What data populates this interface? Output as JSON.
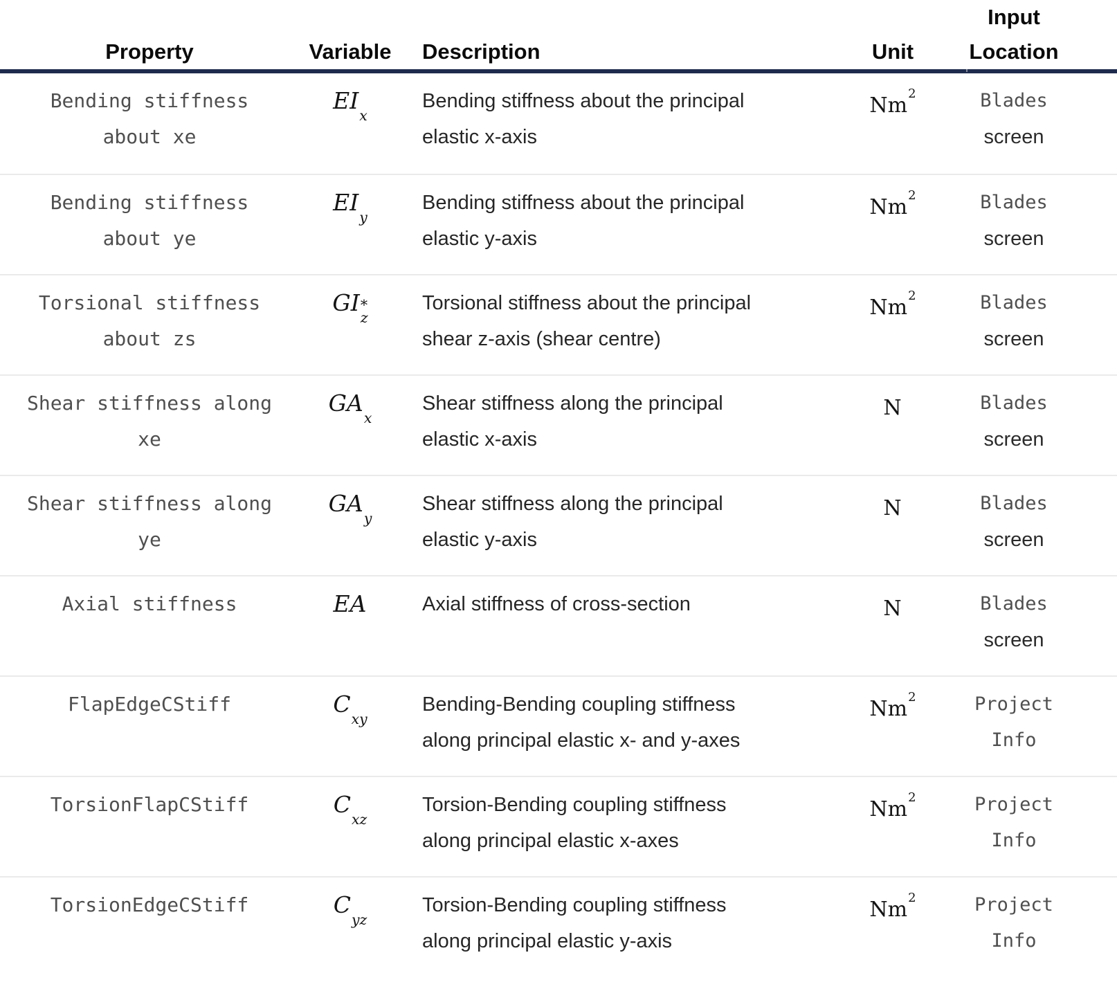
{
  "colors": {
    "header_rule": "#1f2b4d",
    "row_divider": "#eaeaea",
    "code_text": "#4f4f4f",
    "body_text": "#262626"
  },
  "table": {
    "columns": [
      {
        "id": "property",
        "lines": [
          "Property"
        ]
      },
      {
        "id": "variable",
        "lines": [
          "Variable"
        ]
      },
      {
        "id": "description",
        "lines": [
          "Description"
        ]
      },
      {
        "id": "unit",
        "lines": [
          "Unit"
        ]
      },
      {
        "id": "input_location",
        "lines": [
          "Input",
          "Location"
        ]
      }
    ],
    "rows": [
      {
        "property_lines": [
          "Bending stiffness",
          "about xe"
        ],
        "variable": {
          "base": "EI",
          "sup": "",
          "sub": "x"
        },
        "description_lines": [
          "Bending stiffness about the principal",
          "elastic x-axis"
        ],
        "unit": {
          "base": "Nm",
          "sup": "2"
        },
        "location": {
          "line1": "Blades",
          "line1_code": true,
          "line2": "screen",
          "line2_code": false
        }
      },
      {
        "property_lines": [
          "Bending stiffness",
          "about ye"
        ],
        "variable": {
          "base": "EI",
          "sup": "",
          "sub": "y"
        },
        "description_lines": [
          "Bending stiffness about the principal",
          "elastic y-axis"
        ],
        "unit": {
          "base": "Nm",
          "sup": "2"
        },
        "location": {
          "line1": "Blades",
          "line1_code": true,
          "line2": "screen",
          "line2_code": false
        }
      },
      {
        "property_lines": [
          "Torsional stiffness",
          "about zs"
        ],
        "variable": {
          "base": "GI",
          "sup": "*",
          "sub": "z"
        },
        "description_lines": [
          "Torsional stiffness about the principal",
          "shear z-axis (shear centre)"
        ],
        "unit": {
          "base": "Nm",
          "sup": "2"
        },
        "location": {
          "line1": "Blades",
          "line1_code": true,
          "line2": "screen",
          "line2_code": false
        }
      },
      {
        "property_lines": [
          "Shear stiffness along",
          "xe"
        ],
        "variable": {
          "base": "GA",
          "sup": "",
          "sub": "x"
        },
        "description_lines": [
          "Shear stiffness along the principal",
          "elastic x-axis"
        ],
        "unit": {
          "base": "N",
          "sup": ""
        },
        "location": {
          "line1": "Blades",
          "line1_code": true,
          "line2": "screen",
          "line2_code": false
        }
      },
      {
        "property_lines": [
          "Shear stiffness along",
          "ye"
        ],
        "variable": {
          "base": "GA",
          "sup": "",
          "sub": "y"
        },
        "description_lines": [
          "Shear stiffness along the principal",
          "elastic y-axis"
        ],
        "unit": {
          "base": "N",
          "sup": ""
        },
        "location": {
          "line1": "Blades",
          "line1_code": true,
          "line2": "screen",
          "line2_code": false
        }
      },
      {
        "property_lines": [
          "Axial stiffness"
        ],
        "variable": {
          "base": "EA",
          "sup": "",
          "sub": ""
        },
        "description_lines": [
          "Axial stiffness of cross-section"
        ],
        "unit": {
          "base": "N",
          "sup": ""
        },
        "location": {
          "line1": "Blades",
          "line1_code": true,
          "line2": "screen",
          "line2_code": false
        }
      },
      {
        "property_lines": [
          "FlapEdgeCStiff"
        ],
        "variable": {
          "base": "C",
          "sup": "",
          "sub": "xy"
        },
        "description_lines": [
          "Bending-Bending coupling stiffness",
          "along principal elastic x- and y-axes"
        ],
        "unit": {
          "base": "Nm",
          "sup": "2"
        },
        "location": {
          "line1": "Project",
          "line1_code": true,
          "line2": "Info",
          "line2_code": true
        }
      },
      {
        "property_lines": [
          "TorsionFlapCStiff"
        ],
        "variable": {
          "base": "C",
          "sup": "",
          "sub": "xz"
        },
        "description_lines": [
          "Torsion-Bending coupling stiffness",
          "along principal elastic x-axes"
        ],
        "unit": {
          "base": "Nm",
          "sup": "2"
        },
        "location": {
          "line1": "Project",
          "line1_code": true,
          "line2": "Info",
          "line2_code": true
        }
      },
      {
        "property_lines": [
          "TorsionEdgeCStiff"
        ],
        "variable": {
          "base": "C",
          "sup": "",
          "sub": "yz"
        },
        "description_lines": [
          "Torsion-Bending coupling stiffness",
          "along principal elastic y-axis"
        ],
        "unit": {
          "base": "Nm",
          "sup": "2"
        },
        "location": {
          "line1": "Project",
          "line1_code": true,
          "line2": "Info",
          "line2_code": true
        }
      }
    ]
  }
}
